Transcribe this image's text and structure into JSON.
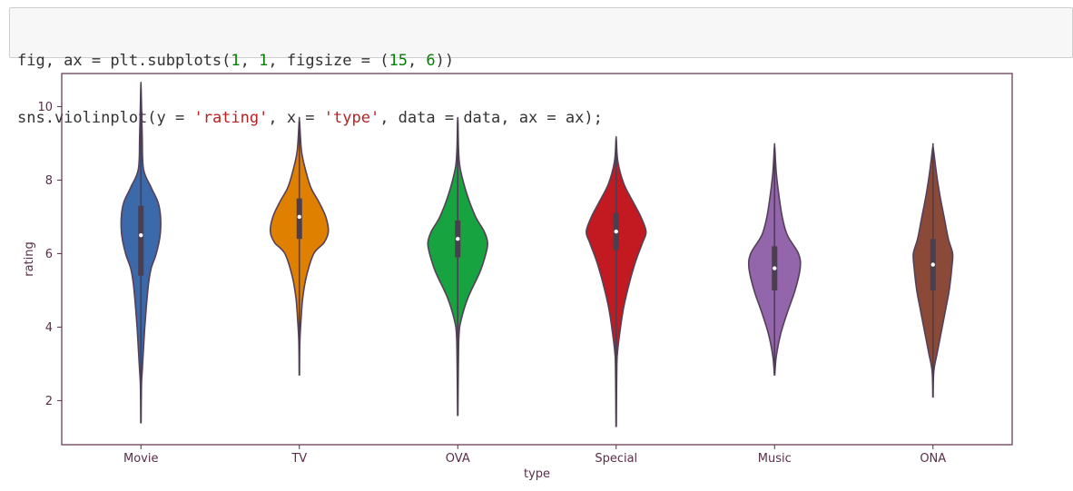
{
  "code": {
    "line1": [
      {
        "t": "fig, ax = plt.subplots(",
        "k": ""
      },
      {
        "t": "1",
        "k": "num"
      },
      {
        "t": ", ",
        "k": ""
      },
      {
        "t": "1",
        "k": "num"
      },
      {
        "t": ", figsize = (",
        "k": ""
      },
      {
        "t": "15",
        "k": "num"
      },
      {
        "t": ", ",
        "k": ""
      },
      {
        "t": "6",
        "k": "num"
      },
      {
        "t": "))",
        "k": ""
      }
    ],
    "line2": [
      {
        "t": "sns.violinplot(y = ",
        "k": ""
      },
      {
        "t": "'rating'",
        "k": "str"
      },
      {
        "t": ", x = ",
        "k": ""
      },
      {
        "t": "'type'",
        "k": "str"
      },
      {
        "t": ", data = data, ax = ax);",
        "k": ""
      }
    ]
  },
  "chart_data": {
    "type": "violin",
    "xlabel": "type",
    "ylabel": "rating",
    "ylim": [
      0.8,
      10.9
    ],
    "yticks": [
      2,
      4,
      6,
      8,
      10
    ],
    "grid": false,
    "categories": [
      "Movie",
      "TV",
      "OVA",
      "Special",
      "Music",
      "ONA"
    ],
    "colors": [
      "#3c69a9",
      "#df8000",
      "#17a33f",
      "#c21a20",
      "#9365aa",
      "#8b4a37"
    ],
    "edge_color": "#55405a",
    "violins": [
      {
        "name": "Movie",
        "color": "#3c69a9",
        "min": 1.4,
        "max": 10.5,
        "q1": 5.4,
        "median": 6.5,
        "q3": 7.3,
        "profile": [
          [
            1.4,
            0.3
          ],
          [
            2.4,
            1.2
          ],
          [
            2.8,
            3
          ],
          [
            3.4,
            6
          ],
          [
            4.0,
            9
          ],
          [
            4.6,
            13
          ],
          [
            5.2,
            18
          ],
          [
            5.6,
            24
          ],
          [
            6.0,
            36
          ],
          [
            6.5,
            45
          ],
          [
            7.0,
            46
          ],
          [
            7.4,
            40
          ],
          [
            7.8,
            24
          ],
          [
            8.3,
            6
          ],
          [
            9.2,
            3
          ],
          [
            10.5,
            0.4
          ]
        ]
      },
      {
        "name": "TV",
        "color": "#df8000",
        "min": 2.7,
        "max": 9.6,
        "q1": 6.4,
        "median": 7.0,
        "q3": 7.5,
        "profile": [
          [
            2.7,
            0.3
          ],
          [
            3.6,
            1.2
          ],
          [
            4.2,
            4
          ],
          [
            4.8,
            8
          ],
          [
            5.4,
            17
          ],
          [
            6.0,
            34
          ],
          [
            6.3,
            58
          ],
          [
            6.6,
            68
          ],
          [
            7.0,
            62
          ],
          [
            7.4,
            46
          ],
          [
            7.8,
            27
          ],
          [
            8.3,
            14
          ],
          [
            8.8,
            5
          ],
          [
            9.6,
            0.4
          ]
        ]
      },
      {
        "name": "OVA",
        "color": "#17a33f",
        "min": 1.6,
        "max": 9.6,
        "q1": 5.9,
        "median": 6.4,
        "q3": 6.9,
        "profile": [
          [
            1.6,
            0.3
          ],
          [
            3.0,
            1.5
          ],
          [
            3.8,
            3
          ],
          [
            4.2,
            8
          ],
          [
            4.8,
            24
          ],
          [
            5.5,
            52
          ],
          [
            6.0,
            66
          ],
          [
            6.3,
            70
          ],
          [
            6.6,
            62
          ],
          [
            7.0,
            42
          ],
          [
            7.6,
            22
          ],
          [
            8.3,
            6
          ],
          [
            8.8,
            2
          ],
          [
            9.6,
            0.4
          ]
        ]
      },
      {
        "name": "Special",
        "color": "#c21a20",
        "min": 1.3,
        "max": 9.1,
        "q1": 6.1,
        "median": 6.6,
        "q3": 7.1,
        "profile": [
          [
            1.3,
            0.3
          ],
          [
            2.9,
            1.5
          ],
          [
            3.3,
            3
          ],
          [
            3.8,
            8
          ],
          [
            4.5,
            17
          ],
          [
            5.2,
            31
          ],
          [
            5.8,
            46
          ],
          [
            6.3,
            62
          ],
          [
            6.6,
            70
          ],
          [
            7.0,
            58
          ],
          [
            7.4,
            40
          ],
          [
            7.9,
            18
          ],
          [
            8.5,
            4
          ],
          [
            9.1,
            0.4
          ]
        ]
      },
      {
        "name": "Music",
        "color": "#9365aa",
        "min": 2.7,
        "max": 8.9,
        "q1": 5.0,
        "median": 5.6,
        "q3": 6.2,
        "profile": [
          [
            2.7,
            0.4
          ],
          [
            3.2,
            4
          ],
          [
            3.8,
            14
          ],
          [
            4.4,
            30
          ],
          [
            5.0,
            48
          ],
          [
            5.6,
            60
          ],
          [
            6.0,
            56
          ],
          [
            6.5,
            30
          ],
          [
            7.0,
            18
          ],
          [
            7.6,
            10
          ],
          [
            8.2,
            4
          ],
          [
            8.9,
            0.4
          ]
        ]
      },
      {
        "name": "ONA",
        "color": "#8b4a37",
        "min": 2.1,
        "max": 8.9,
        "q1": 5.0,
        "median": 5.7,
        "q3": 6.4,
        "profile": [
          [
            2.1,
            0.3
          ],
          [
            2.8,
            2
          ],
          [
            3.3,
            10
          ],
          [
            3.9,
            20
          ],
          [
            4.5,
            30
          ],
          [
            5.0,
            38
          ],
          [
            5.6,
            44
          ],
          [
            6.0,
            46
          ],
          [
            6.4,
            36
          ],
          [
            7.0,
            26
          ],
          [
            7.6,
            16
          ],
          [
            8.2,
            8
          ],
          [
            8.9,
            0.4
          ]
        ]
      }
    ]
  }
}
